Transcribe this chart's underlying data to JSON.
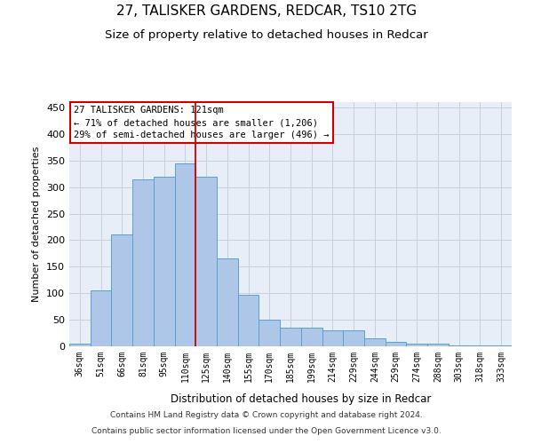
{
  "title1": "27, TALISKER GARDENS, REDCAR, TS10 2TG",
  "title2": "Size of property relative to detached houses in Redcar",
  "xlabel": "Distribution of detached houses by size in Redcar",
  "ylabel": "Number of detached properties",
  "footer1": "Contains HM Land Registry data © Crown copyright and database right 2024.",
  "footer2": "Contains public sector information licensed under the Open Government Licence v3.0.",
  "annotation_line1": "27 TALISKER GARDENS: 121sqm",
  "annotation_line2": "← 71% of detached houses are smaller (1,206)",
  "annotation_line3": "29% of semi-detached houses are larger (496) →",
  "categories": [
    "36sqm",
    "51sqm",
    "66sqm",
    "81sqm",
    "95sqm",
    "110sqm",
    "125sqm",
    "140sqm",
    "155sqm",
    "170sqm",
    "185sqm",
    "199sqm",
    "214sqm",
    "229sqm",
    "244sqm",
    "259sqm",
    "274sqm",
    "288sqm",
    "303sqm",
    "318sqm",
    "333sqm"
  ],
  "values": [
    5,
    105,
    210,
    315,
    320,
    345,
    320,
    165,
    97,
    50,
    35,
    35,
    30,
    30,
    15,
    8,
    5,
    5,
    2,
    1,
    1
  ],
  "bar_color": "#aec6e8",
  "bar_edge_color": "#5a9fd4",
  "vline_color": "#cc0000",
  "vline_position": 5.5,
  "ylim": [
    0,
    460
  ],
  "yticks": [
    0,
    50,
    100,
    150,
    200,
    250,
    300,
    350,
    400,
    450
  ],
  "grid_color": "#c8d0dc",
  "bg_color": "#e8eef8",
  "annotation_box_color": "#ffffff",
  "annotation_box_edge": "#cc0000",
  "title1_fontsize": 11,
  "title2_fontsize": 9.5
}
